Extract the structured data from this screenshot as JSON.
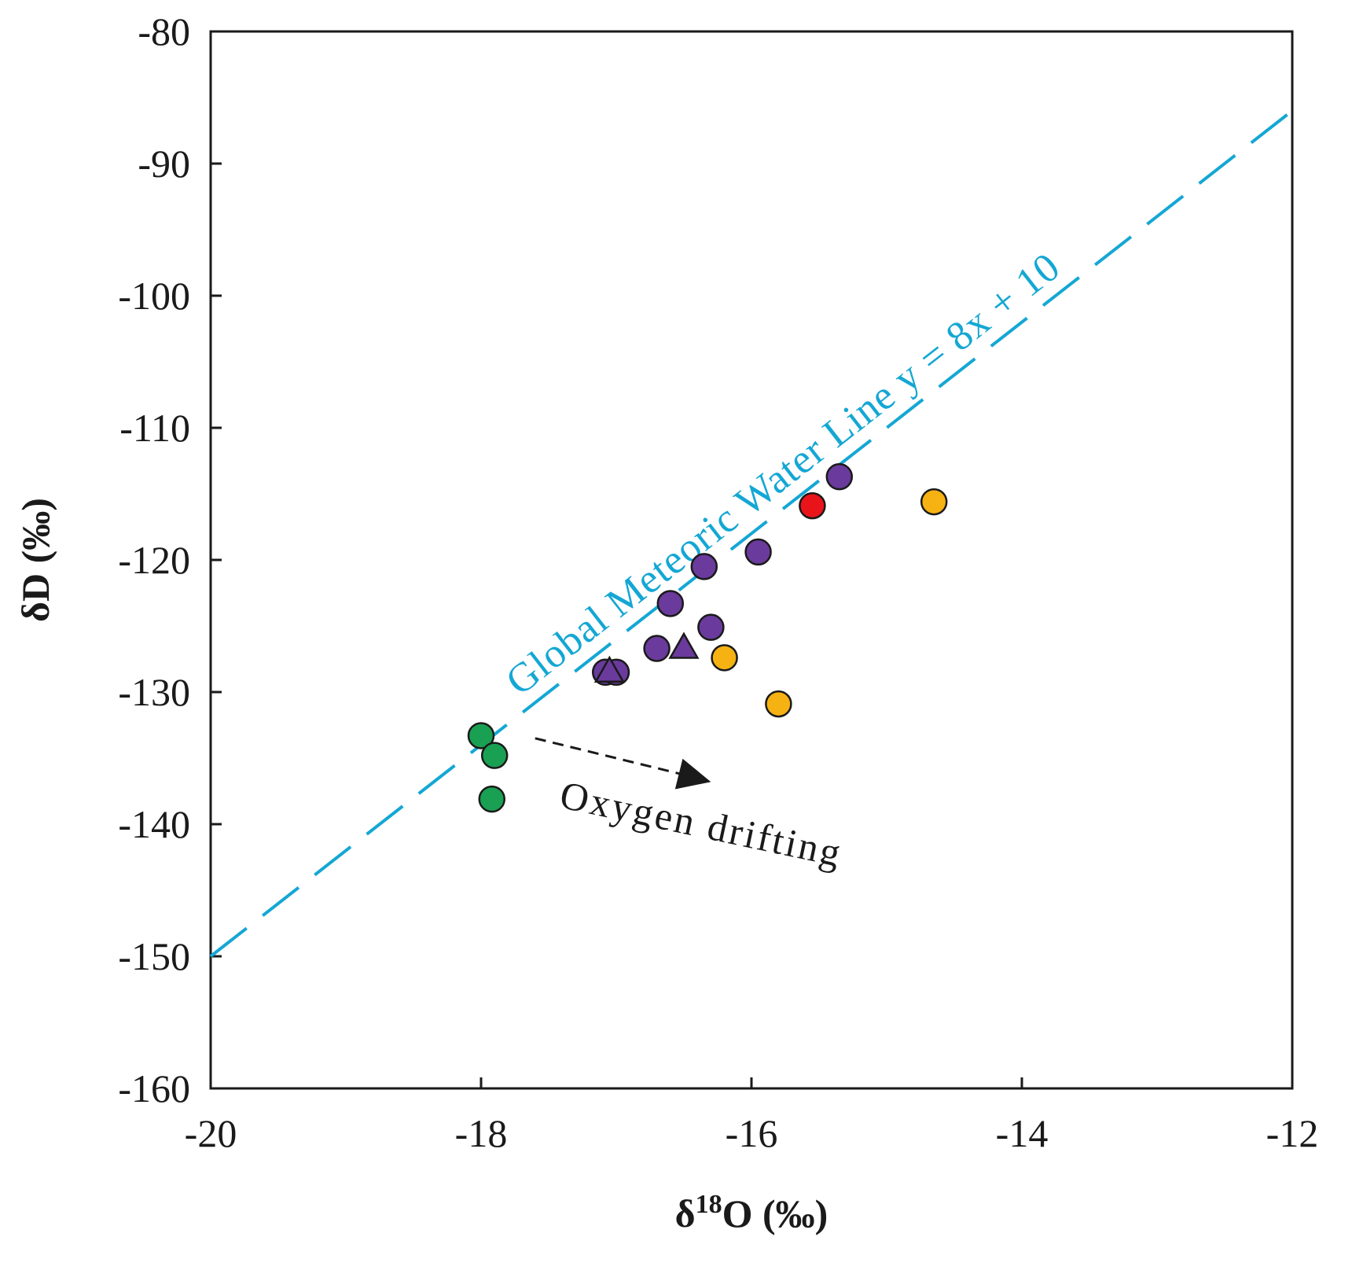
{
  "chart_data": {
    "type": "scatter",
    "title": "",
    "xlabel": "δ¹⁸O (‰)",
    "xlabel_parts": {
      "prefix": "δ",
      "superscript": "18",
      "suffix": "O (‰)"
    },
    "ylabel": "δD (‰)",
    "xlim": [
      -20,
      -12
    ],
    "ylim": [
      -160,
      -80
    ],
    "x_ticks": [
      -20,
      -18,
      -16,
      -14,
      -12
    ],
    "x_tick_labels": [
      "-20",
      "-18",
      "-16",
      "-14",
      "-12"
    ],
    "y_ticks": [
      -80,
      -90,
      -100,
      -110,
      -120,
      -130,
      -140,
      -150,
      -160
    ],
    "y_tick_labels": [
      "-80",
      "-90",
      "-100",
      "-110",
      "-120",
      "-130",
      "-140",
      "-150",
      "-160"
    ],
    "grid": false,
    "reference_line": {
      "name": "Global Meteoric Water Line",
      "label": "Global Meteoric Water Line  y = 8x + 10",
      "slope": 8,
      "intercept": 10,
      "style": "dashed",
      "color": "#14a7d4"
    },
    "annotation": {
      "text": "Oxygen drifting",
      "arrow_from": [
        -17.6,
        -133.5
      ],
      "arrow_to": [
        -16.3,
        -136.8
      ]
    },
    "series": [
      {
        "name": "green",
        "marker": "circle",
        "color": "#1aa052",
        "points": [
          {
            "x": -18.0,
            "y": -133.3
          },
          {
            "x": -17.9,
            "y": -134.8
          },
          {
            "x": -17.92,
            "y": -138.1
          }
        ]
      },
      {
        "name": "purple",
        "marker": "circle",
        "color": "#6a3a9c",
        "points": [
          {
            "x": -15.35,
            "y": -113.7
          },
          {
            "x": -15.95,
            "y": -119.4
          },
          {
            "x": -16.35,
            "y": -120.5
          },
          {
            "x": -16.6,
            "y": -123.3
          },
          {
            "x": -16.3,
            "y": -125.1
          },
          {
            "x": -16.7,
            "y": -126.7
          },
          {
            "x": -17.08,
            "y": -128.5
          },
          {
            "x": -17.0,
            "y": -128.5
          }
        ]
      },
      {
        "name": "purple-triangle",
        "marker": "triangle",
        "color": "#6a3a9c",
        "points": [
          {
            "x": -16.5,
            "y": -126.7
          },
          {
            "x": -17.05,
            "y": -128.5
          }
        ]
      },
      {
        "name": "red",
        "marker": "circle",
        "color": "#e8141a",
        "points": [
          {
            "x": -15.55,
            "y": -115.9
          }
        ]
      },
      {
        "name": "orange",
        "marker": "circle",
        "color": "#f6b212",
        "points": [
          {
            "x": -14.65,
            "y": -115.6
          },
          {
            "x": -16.2,
            "y": -127.4
          },
          {
            "x": -15.8,
            "y": -130.9
          }
        ]
      }
    ]
  }
}
